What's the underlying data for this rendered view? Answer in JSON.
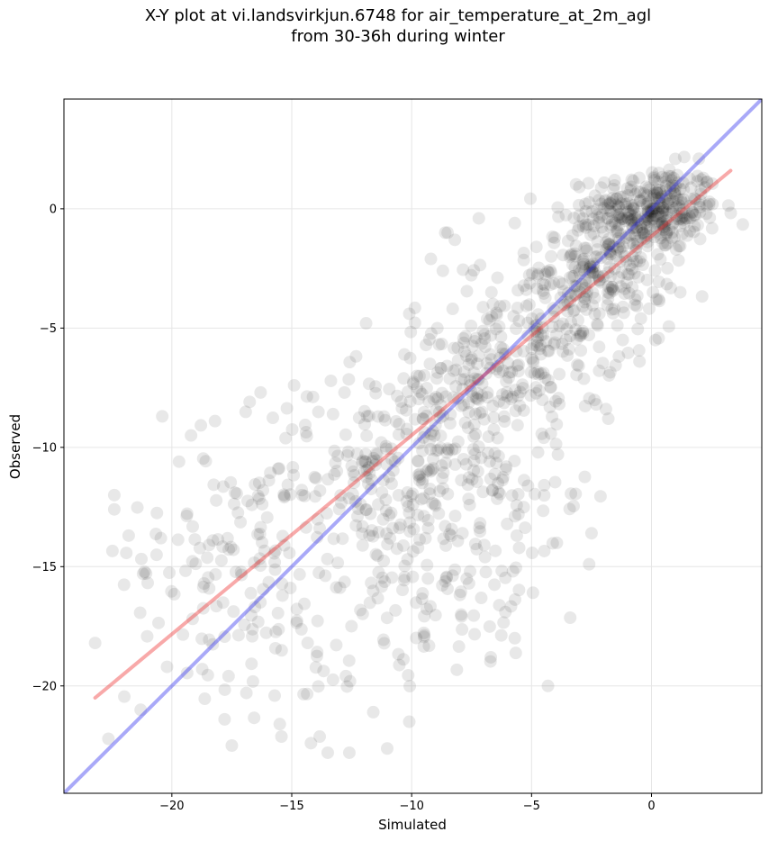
{
  "chart_data": {
    "type": "scatter",
    "title_line1": "X-Y plot at vi.landsvirkjun.6748 for air_temperature_at_2m_agl",
    "title_line2": "from 30-36h during winter",
    "xlabel": "Simulated",
    "ylabel": "Observed",
    "xlim": [
      -24.5,
      4.6
    ],
    "ylim": [
      -24.5,
      4.6
    ],
    "xticks": [
      -20,
      -15,
      -10,
      -5,
      0
    ],
    "yticks": [
      0,
      -5,
      -10,
      -15,
      -20
    ],
    "xtick_labels": [
      "−20",
      "−15",
      "−10",
      "−5",
      "0"
    ],
    "ytick_labels": [
      "0",
      "−5",
      "−10",
      "−15",
      "−20"
    ],
    "grid": true,
    "colors": {
      "points": "#000000",
      "fit_line": "#ee3333",
      "identity_line": "#3333ee",
      "grid": "#e6e6e6"
    },
    "lines": [
      {
        "role": "identity",
        "x": [
          -24.5,
          4.6
        ],
        "y": [
          -24.5,
          4.6
        ]
      },
      {
        "role": "linear-fit",
        "x": [
          -23.2,
          3.3
        ],
        "y": [
          -20.5,
          1.6
        ]
      }
    ],
    "clusters": [
      {
        "cx": 0.2,
        "cy": 0.0,
        "sx": 1.3,
        "sy": 0.9,
        "n": 280
      },
      {
        "cx": -1.8,
        "cy": -2.2,
        "sx": 1.4,
        "sy": 1.3,
        "n": 220
      },
      {
        "cx": -4.5,
        "cy": -5.2,
        "sx": 1.6,
        "sy": 1.6,
        "n": 180
      },
      {
        "cx": -8.0,
        "cy": -8.0,
        "sx": 1.8,
        "sy": 1.6,
        "n": 150
      },
      {
        "cx": -11.5,
        "cy": -11.0,
        "sx": 2.3,
        "sy": 2.2,
        "n": 170
      },
      {
        "cx": -9.0,
        "cy": -14.0,
        "sx": 2.5,
        "sy": 2.4,
        "n": 120
      },
      {
        "cx": -17.5,
        "cy": -14.5,
        "sx": 2.2,
        "sy": 2.5,
        "n": 110
      },
      {
        "cx": -13.0,
        "cy": -18.0,
        "sx": 3.0,
        "sy": 2.0,
        "n": 60
      },
      {
        "cx": -5.5,
        "cy": -12.0,
        "sx": 1.5,
        "sy": 3.0,
        "n": 60
      }
    ],
    "outliers": [
      [
        -23.2,
        -18.2
      ],
      [
        -22.4,
        -12.0
      ],
      [
        -22.4,
        -12.6
      ],
      [
        -20.4,
        -8.7
      ],
      [
        -19.2,
        -9.5
      ],
      [
        -18.2,
        -8.9
      ],
      [
        -17.5,
        -22.5
      ],
      [
        -13.5,
        -22.8
      ],
      [
        -12.6,
        -22.8
      ],
      [
        -14.2,
        -22.4
      ],
      [
        -10.1,
        -21.5
      ],
      [
        -15.5,
        -21.6
      ],
      [
        -11.6,
        -21.1
      ],
      [
        -9.2,
        -2.1
      ],
      [
        -8.7,
        -2.6
      ],
      [
        -8.2,
        -1.3
      ],
      [
        -7.2,
        -0.4
      ],
      [
        -10.1,
        -4.4
      ],
      [
        -8.6,
        -1.0
      ],
      [
        -5.7,
        -0.6
      ],
      [
        -12.8,
        -7.7
      ],
      [
        -16.3,
        -7.7
      ],
      [
        -14.9,
        -7.4
      ],
      [
        -4.9,
        -5.7
      ],
      [
        -2.3,
        -8.2
      ],
      [
        -1.8,
        -8.8
      ],
      [
        -3.9,
        -10.3
      ],
      [
        -2.6,
        -14.9
      ],
      [
        -2.5,
        -13.6
      ],
      [
        -6.7,
        -18.8
      ],
      [
        -5.7,
        -18.0
      ],
      [
        -1.9,
        -8.4
      ],
      [
        1.2,
        -3.5
      ],
      [
        0.2,
        -3.8
      ],
      [
        -0.5,
        -6.4
      ],
      [
        -1.2,
        -5.5
      ],
      [
        -8.5,
        -1.0
      ],
      [
        -11.9,
        -4.8
      ],
      [
        -16.2,
        -11.8
      ],
      [
        -19.7,
        -10.6
      ],
      [
        -21.8,
        -13.7
      ],
      [
        -21.2,
        -15.3
      ],
      [
        -20.2,
        -19.2
      ],
      [
        -21.3,
        -21.0
      ],
      [
        -17.8,
        -21.4
      ]
    ],
    "series": [
      {
        "kind": "points",
        "color": "#000000",
        "opacity": 0.09
      },
      {
        "kind": "fit-line",
        "color": "#ee3333",
        "opacity": 0.4
      },
      {
        "kind": "identity-line",
        "color": "#3333ee",
        "opacity": 0.4
      }
    ]
  }
}
